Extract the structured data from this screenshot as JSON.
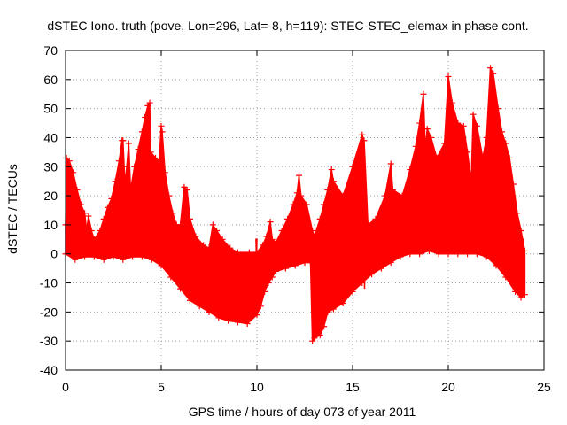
{
  "chart_data": {
    "type": "area",
    "title": "dSTEC Iono. truth (pove, Lon=296, Lat=-8, h=119): STEC-STEC_elemax in phase cont.",
    "xlabel": "GPS time / hours of day 073 of year 2011",
    "ylabel": "dSTEC  / TECUs",
    "xlim": [
      0,
      25
    ],
    "ylim": [
      -40,
      70
    ],
    "xticks": [
      0,
      5,
      10,
      15,
      20,
      25
    ],
    "yticks": [
      -40,
      -30,
      -20,
      -10,
      0,
      10,
      20,
      30,
      40,
      50,
      60,
      70
    ],
    "grid": true,
    "series_color": "#ff0000",
    "grid_color": "#a0a0a0",
    "marker": "+",
    "series": [
      {
        "name": "dSTEC",
        "upper": [
          [
            0.0,
            10
          ],
          [
            0.05,
            33
          ],
          [
            0.2,
            32
          ],
          [
            0.4,
            28
          ],
          [
            0.6,
            22
          ],
          [
            0.8,
            17
          ],
          [
            1.0,
            14
          ],
          [
            1.1,
            8
          ],
          [
            1.2,
            13
          ],
          [
            1.35,
            8
          ],
          [
            1.5,
            5
          ],
          [
            1.8,
            8
          ],
          [
            2.0,
            12
          ],
          [
            2.2,
            16
          ],
          [
            2.4,
            19
          ],
          [
            2.6,
            25
          ],
          [
            2.8,
            32
          ],
          [
            2.95,
            39
          ],
          [
            3.0,
            39
          ],
          [
            3.1,
            24
          ],
          [
            3.2,
            30
          ],
          [
            3.3,
            38
          ],
          [
            3.4,
            22
          ],
          [
            3.6,
            30
          ],
          [
            3.8,
            36
          ],
          [
            4.0,
            42
          ],
          [
            4.15,
            47
          ],
          [
            4.3,
            51
          ],
          [
            4.4,
            52
          ],
          [
            4.45,
            35
          ],
          [
            4.7,
            33
          ],
          [
            4.9,
            32
          ],
          [
            5.0,
            44
          ],
          [
            5.05,
            42
          ],
          [
            5.2,
            28
          ],
          [
            5.4,
            20
          ],
          [
            5.6,
            14
          ],
          [
            5.8,
            10
          ],
          [
            6.0,
            10
          ],
          [
            6.2,
            23
          ],
          [
            6.35,
            22
          ],
          [
            6.5,
            12
          ],
          [
            6.8,
            6
          ],
          [
            7.2,
            3
          ],
          [
            7.5,
            2
          ],
          [
            7.7,
            10
          ],
          [
            7.9,
            8
          ],
          [
            8.2,
            5
          ],
          [
            8.6,
            2
          ],
          [
            9.0,
            0.5
          ],
          [
            9.6,
            0.5
          ],
          [
            10.0,
            0.5
          ],
          [
            10.3,
            3
          ],
          [
            10.5,
            6
          ],
          [
            10.7,
            11
          ],
          [
            10.8,
            5
          ],
          [
            11.0,
            4
          ],
          [
            11.3,
            8
          ],
          [
            11.6,
            12
          ],
          [
            11.9,
            17
          ],
          [
            12.1,
            21
          ],
          [
            12.2,
            27
          ],
          [
            12.3,
            20
          ],
          [
            12.6,
            17
          ],
          [
            12.9,
            8
          ],
          [
            13.0,
            6
          ],
          [
            13.3,
            12
          ],
          [
            13.5,
            17
          ],
          [
            13.7,
            22
          ],
          [
            13.9,
            29
          ],
          [
            14.0,
            25
          ],
          [
            14.5,
            20
          ],
          [
            15.0,
            30
          ],
          [
            15.5,
            41
          ],
          [
            15.6,
            39
          ],
          [
            15.8,
            10
          ],
          [
            16.2,
            12
          ],
          [
            16.7,
            20
          ],
          [
            17.0,
            31
          ],
          [
            17.1,
            22
          ],
          [
            17.6,
            20
          ],
          [
            18.0,
            29
          ],
          [
            18.3,
            37
          ],
          [
            18.5,
            45
          ],
          [
            18.7,
            55
          ],
          [
            18.8,
            36
          ],
          [
            18.9,
            43
          ],
          [
            19.1,
            40
          ],
          [
            19.4,
            33
          ],
          [
            19.8,
            38
          ],
          [
            20.0,
            61
          ],
          [
            20.2,
            52
          ],
          [
            20.5,
            45
          ],
          [
            20.8,
            44
          ],
          [
            21.0,
            35
          ],
          [
            21.2,
            25
          ],
          [
            21.3,
            48
          ],
          [
            21.5,
            44
          ],
          [
            21.8,
            33
          ],
          [
            22.0,
            40
          ],
          [
            22.2,
            64
          ],
          [
            22.35,
            62
          ],
          [
            22.6,
            50
          ],
          [
            22.8,
            42
          ],
          [
            23.0,
            38
          ],
          [
            23.2,
            33
          ],
          [
            23.4,
            24
          ],
          [
            23.6,
            14
          ],
          [
            23.8,
            8
          ],
          [
            24.0,
            1
          ]
        ],
        "lower": [
          [
            0.0,
            0
          ],
          [
            0.5,
            -2
          ],
          [
            1.0,
            -1
          ],
          [
            1.5,
            -1
          ],
          [
            2.0,
            -2
          ],
          [
            2.5,
            -1
          ],
          [
            3.0,
            -2
          ],
          [
            3.5,
            -1
          ],
          [
            4.0,
            -1
          ],
          [
            4.5,
            -2
          ],
          [
            5.0,
            -4
          ],
          [
            5.5,
            -8
          ],
          [
            6.0,
            -12
          ],
          [
            6.5,
            -16
          ],
          [
            7.0,
            -18
          ],
          [
            7.5,
            -20
          ],
          [
            8.0,
            -22
          ],
          [
            8.5,
            -23
          ],
          [
            9.0,
            -23.5
          ],
          [
            9.5,
            -24
          ],
          [
            10.0,
            -21
          ],
          [
            10.2,
            -18
          ],
          [
            10.4,
            -13
          ],
          [
            10.6,
            -10
          ],
          [
            10.8,
            -8
          ],
          [
            11.0,
            -6
          ],
          [
            11.5,
            -5
          ],
          [
            12.0,
            -4
          ],
          [
            12.5,
            -3
          ],
          [
            12.8,
            -3
          ],
          [
            12.9,
            -30
          ],
          [
            13.0,
            -29
          ],
          [
            13.3,
            -28
          ],
          [
            13.5,
            -25
          ],
          [
            13.7,
            -20
          ],
          [
            14.0,
            -19
          ],
          [
            14.5,
            -17
          ],
          [
            15.0,
            -13
          ],
          [
            15.5,
            -10
          ],
          [
            16.0,
            -7
          ],
          [
            16.5,
            -5
          ],
          [
            17.0,
            -3
          ],
          [
            17.5,
            -1
          ],
          [
            18.0,
            0
          ],
          [
            18.5,
            0
          ],
          [
            19.0,
            1
          ],
          [
            19.5,
            0
          ],
          [
            20.0,
            0
          ],
          [
            20.5,
            0
          ],
          [
            21.0,
            0
          ],
          [
            21.5,
            0
          ],
          [
            22.0,
            -1
          ],
          [
            22.5,
            -4
          ],
          [
            23.0,
            -8
          ],
          [
            23.5,
            -13
          ],
          [
            23.8,
            -15
          ],
          [
            24.0,
            -14
          ]
        ],
        "spikes": [
          [
            5.45,
            5.5,
            -3
          ],
          [
            7.75,
            7.8,
            -2
          ],
          [
            9.95,
            10.0,
            -3
          ],
          [
            10.75,
            10.8,
            -1
          ],
          [
            13.0,
            13.05,
            -30
          ],
          [
            15.6,
            15.65,
            -12
          ],
          [
            18.7,
            18.75,
            0
          ],
          [
            20.0,
            20.05,
            2
          ],
          [
            22.2,
            22.25,
            0
          ],
          [
            23.9,
            23.95,
            -11
          ]
        ]
      }
    ]
  }
}
